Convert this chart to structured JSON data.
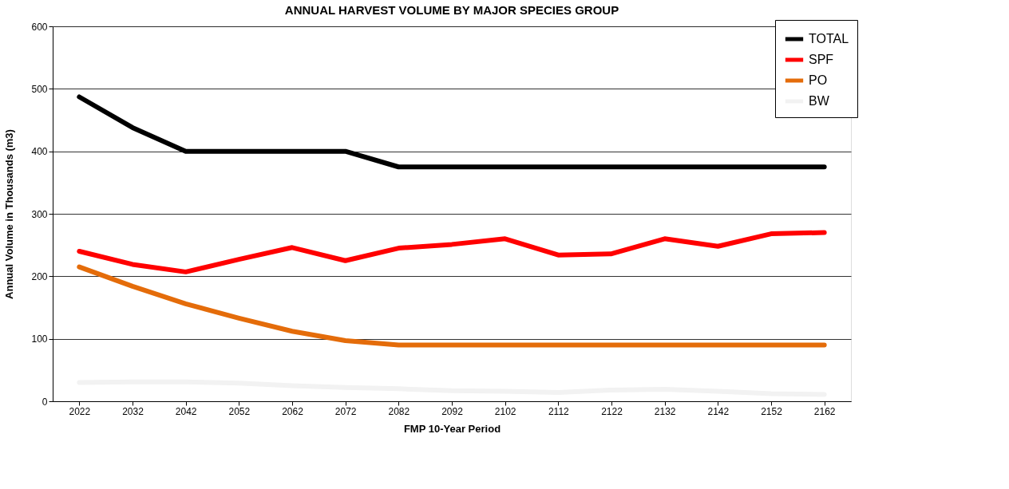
{
  "chart_data": {
    "type": "line",
    "title": "ANNUAL HARVEST VOLUME BY MAJOR SPECIES GROUP",
    "xlabel": "FMP 10-Year Period",
    "ylabel": "Annual Volume in Thousands (m3)",
    "categories": [
      "2022",
      "2032",
      "2042",
      "2052",
      "2062",
      "2072",
      "2082",
      "2092",
      "2102",
      "2112",
      "2122",
      "2132",
      "2142",
      "2152",
      "2162"
    ],
    "series": [
      {
        "name": "TOTAL",
        "color": "#000000",
        "values": [
          487,
          438,
          400,
          400,
          400,
          400,
          375,
          375,
          375,
          375,
          375,
          375,
          375,
          375,
          375
        ]
      },
      {
        "name": "SPF",
        "color": "#ff0000",
        "values": [
          240,
          219,
          207,
          227,
          246,
          225,
          245,
          251,
          260,
          234,
          236,
          260,
          248,
          268,
          270
        ]
      },
      {
        "name": "PO",
        "color": "#e46c0a",
        "values": [
          215,
          184,
          156,
          133,
          112,
          97,
          90,
          90,
          90,
          90,
          90,
          90,
          90,
          90,
          90
        ]
      },
      {
        "name": "BW",
        "color": "#f2f2f2",
        "values": [
          30,
          31,
          31,
          29,
          25,
          22,
          20,
          17,
          16,
          14,
          18,
          19,
          16,
          12,
          11
        ]
      }
    ],
    "ylim": [
      0,
      600
    ],
    "yticks": [
      0,
      100,
      200,
      300,
      400,
      500,
      600
    ],
    "grid": "y",
    "legend": "top right",
    "marker": "none",
    "line_style": "solid"
  }
}
